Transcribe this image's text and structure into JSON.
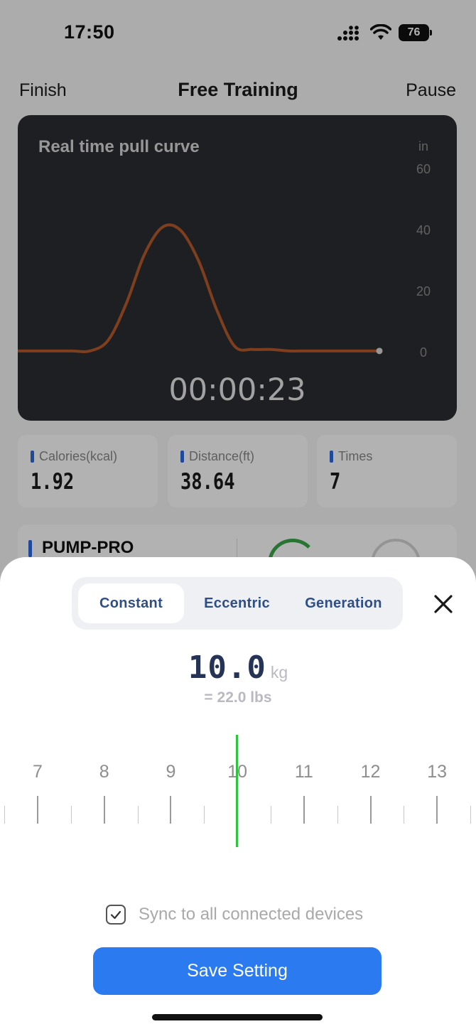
{
  "status_bar": {
    "time": "17:50",
    "battery": "76"
  },
  "nav": {
    "left": "Finish",
    "title": "Free Training",
    "right": "Pause"
  },
  "curve_card": {
    "title": "Real time pull curve",
    "unit": "in",
    "y_ticks": [
      "60",
      "40",
      "20",
      "0"
    ],
    "timer": "00:00:23"
  },
  "chart_data": {
    "type": "line",
    "title": "Real time pull curve",
    "ylabel": "in",
    "ylim": [
      0,
      60
    ],
    "y_ticks": [
      0,
      20,
      40,
      60
    ],
    "series": [
      {
        "color": "#b65a2a",
        "x": [
          0,
          1,
          2,
          3,
          4,
          5,
          6,
          7,
          8,
          9,
          10,
          11,
          12,
          13,
          14,
          15,
          16,
          17,
          18,
          19,
          20
        ],
        "values": [
          0.5,
          0.5,
          0.5,
          0.5,
          0.5,
          4,
          16,
          32,
          41,
          40,
          30,
          14,
          2,
          1,
          1,
          0.5,
          0.5,
          0.5,
          0.5,
          0.5,
          0.5
        ]
      }
    ]
  },
  "stats": [
    {
      "label": "Calories(kcal)",
      "value": "1.92"
    },
    {
      "label": "Distance(ft)",
      "value": "38.64"
    },
    {
      "label": "Times",
      "value": "7"
    }
  ],
  "device": {
    "name": "PUMP-PRO"
  },
  "sheet": {
    "tabs": [
      "Constant",
      "Eccentric",
      "Generation"
    ],
    "active_tab": "Constant",
    "weight_value": "10.0",
    "weight_unit": "kg",
    "weight_lbs": "= 22.0 lbs",
    "ruler_labels": [
      "7",
      "8",
      "9",
      "10",
      "11",
      "12",
      "13"
    ],
    "ruler_selected": 10,
    "sync_label": "Sync to all connected devices",
    "sync_checked": true,
    "save_label": "Save Setting"
  },
  "colors": {
    "accent": "#2b7af0",
    "indicator": "#2fc33e",
    "curve": "#b65a2a",
    "tab_text": "#2f4e86"
  }
}
